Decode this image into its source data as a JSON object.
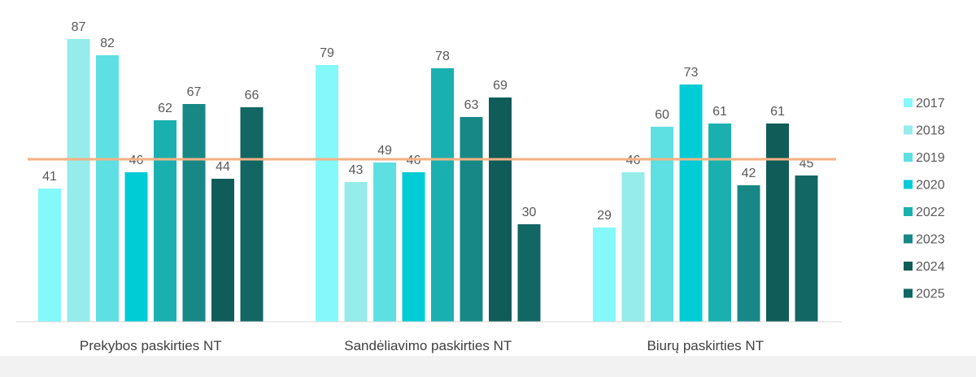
{
  "chart_data": {
    "type": "bar",
    "title": "",
    "xlabel": "",
    "ylabel": "",
    "ylim": [
      0,
      100
    ],
    "grid": false,
    "legend_position": "right",
    "categories": [
      "Prekybos paskirties NT",
      "Sandėliavimo paskirties NT",
      "Biurų paskirties NT"
    ],
    "series": [
      {
        "name": "2017",
        "color": "#84F8FA",
        "values": [
          41,
          79,
          29
        ]
      },
      {
        "name": "2018",
        "color": "#96EBEB",
        "values": [
          87,
          43,
          46
        ]
      },
      {
        "name": "2019",
        "color": "#5EE0E2",
        "values": [
          82,
          49,
          60
        ]
      },
      {
        "name": "2020",
        "color": "#00CCD6",
        "values": [
          46,
          46,
          73
        ]
      },
      {
        "name": "2022",
        "color": "#1BB0B0",
        "values": [
          62,
          78,
          61
        ]
      },
      {
        "name": "2023",
        "color": "#178886",
        "values": [
          67,
          63,
          42
        ]
      },
      {
        "name": "2024",
        "color": "#105C59",
        "values": [
          44,
          69,
          61
        ]
      },
      {
        "name": "2025",
        "color": "#126664",
        "values": [
          66,
          30,
          45
        ]
      }
    ],
    "reference_line": {
      "value": 50,
      "color": "#F4B183"
    }
  }
}
